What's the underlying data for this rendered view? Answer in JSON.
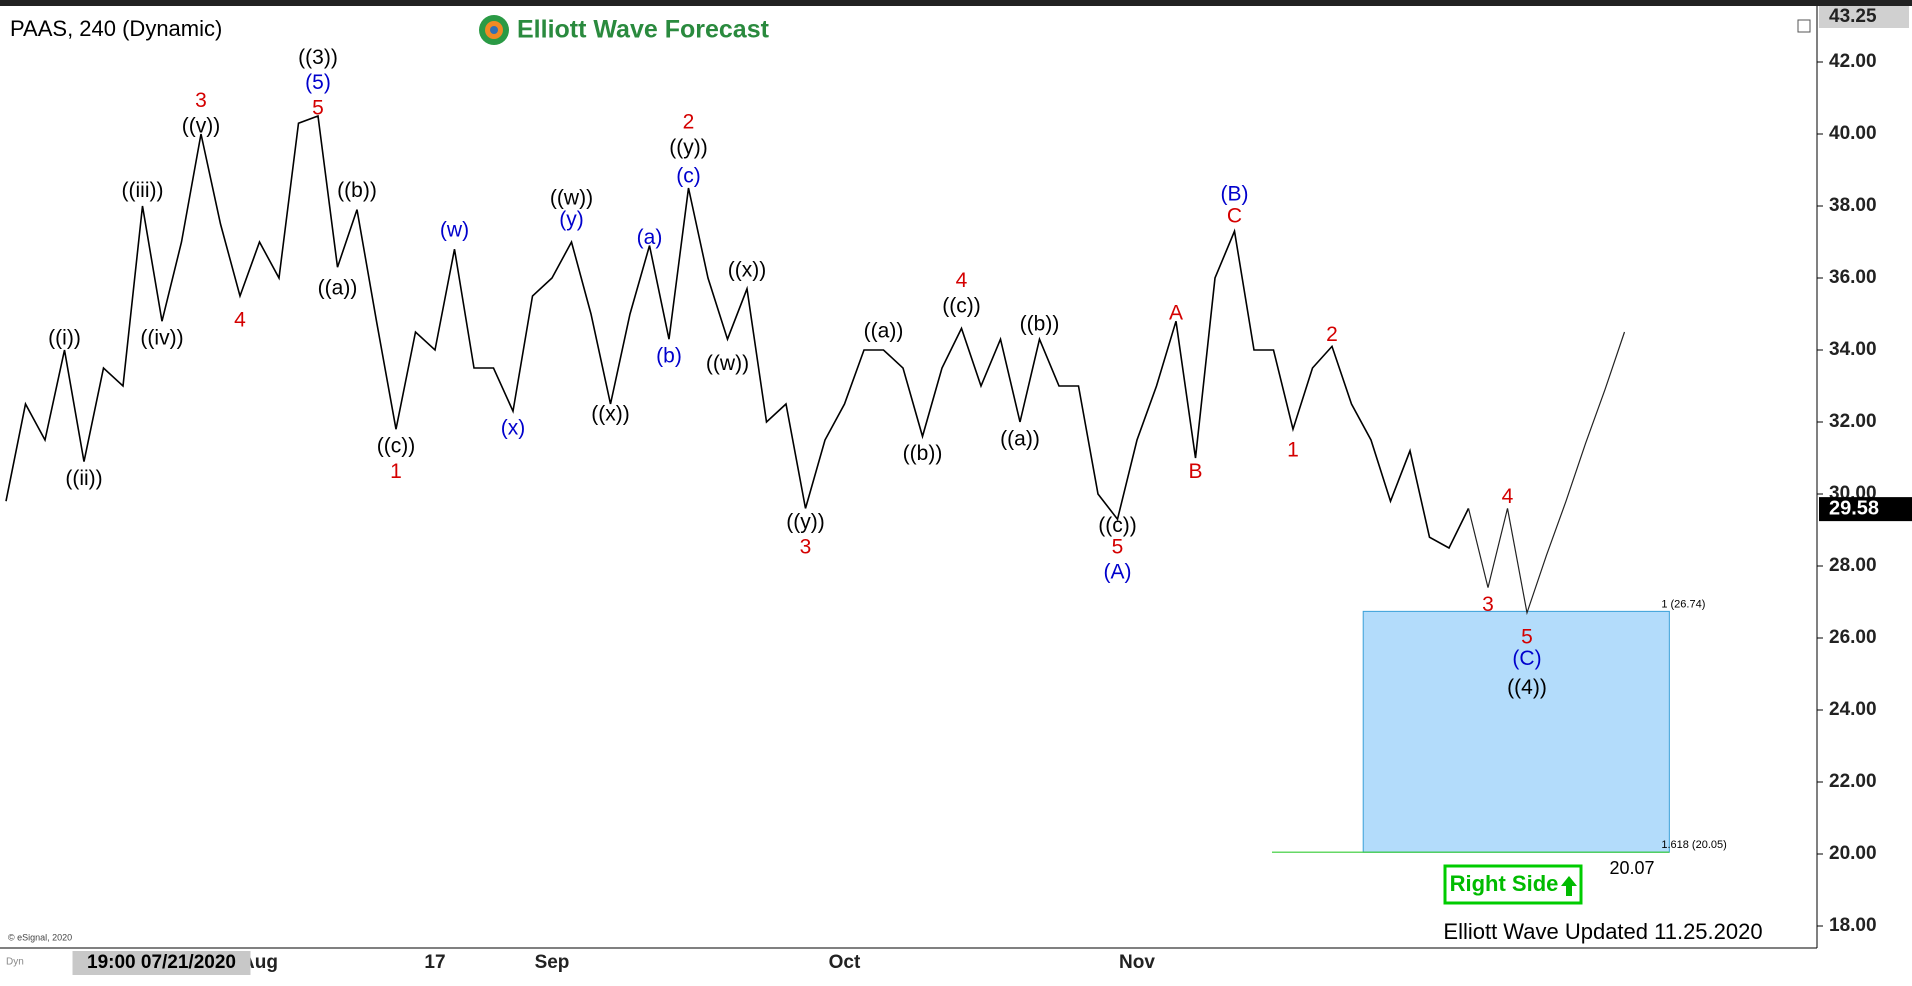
{
  "header": {
    "symbol": "PAAS, 240 (Dynamic)",
    "brand": "Elliott Wave Forecast"
  },
  "footer": {
    "updated": "Elliott Wave Updated 11.25.2020",
    "copyright": "© eSignal, 2020",
    "corner": "Dyn",
    "badge": "Right Side"
  },
  "chart_data": {
    "type": "line",
    "categories": [
      null,
      null,
      null,
      null,
      null,
      null,
      null,
      null,
      null,
      null,
      null,
      null,
      null,
      "Aug",
      null,
      null,
      null,
      null,
      null,
      null,
      null,
      null,
      "17",
      null,
      null,
      null,
      null,
      null,
      "Sep",
      null,
      null,
      null,
      null,
      null,
      null,
      null,
      null,
      null,
      null,
      null,
      null,
      null,
      null,
      "Oct",
      null,
      null,
      null,
      null,
      null,
      null,
      null,
      null,
      null,
      null,
      null,
      null,
      null,
      null,
      "Nov",
      null,
      null,
      null,
      null,
      null,
      null,
      null,
      null,
      null,
      null,
      null,
      null,
      null,
      null,
      null,
      null,
      null,
      null,
      null,
      null,
      null,
      null,
      null,
      null,
      null
    ],
    "crosshair": {
      "label": "19:00 07/21/2020",
      "at": 7
    },
    "series": [
      {
        "color": "#000000",
        "values": [
          29.8,
          32.5,
          31.5,
          34.0,
          30.9,
          33.5,
          33.0,
          38.0,
          34.8,
          37.0,
          40.0,
          37.5,
          35.5,
          37.0,
          36.0,
          40.3,
          40.5,
          36.3,
          37.9,
          34.8,
          31.8,
          34.5,
          34.0,
          36.8,
          33.5,
          33.5,
          32.3,
          35.5,
          36.0,
          37.0,
          35.0,
          32.5,
          35.0,
          36.9,
          34.3,
          38.5,
          36.0,
          34.3,
          35.7,
          32.0,
          32.5,
          29.6,
          31.5,
          32.5,
          34.0,
          34.0,
          33.5,
          31.6,
          33.5,
          34.6,
          33.0,
          34.3,
          32.0,
          34.3,
          33.0,
          33.0,
          30.0,
          29.3,
          31.5,
          33.0,
          34.8,
          31.0,
          36.0,
          37.3,
          34.0,
          34.0,
          31.8,
          33.5,
          34.1,
          32.5,
          31.5,
          29.8,
          31.2,
          28.8,
          28.5,
          29.6,
          null,
          null,
          null,
          null,
          null,
          null,
          null,
          null
        ]
      },
      {
        "color": "#222222",
        "values": [
          null,
          null,
          null,
          null,
          null,
          null,
          null,
          null,
          null,
          null,
          null,
          null,
          null,
          null,
          null,
          null,
          null,
          null,
          null,
          null,
          null,
          null,
          null,
          null,
          null,
          null,
          null,
          null,
          null,
          null,
          null,
          null,
          null,
          null,
          null,
          null,
          null,
          null,
          null,
          null,
          null,
          null,
          null,
          null,
          null,
          null,
          null,
          null,
          null,
          null,
          null,
          null,
          null,
          null,
          null,
          null,
          null,
          null,
          null,
          null,
          null,
          null,
          null,
          null,
          null,
          null,
          null,
          null,
          null,
          null,
          null,
          null,
          null,
          null,
          null,
          29.6,
          27.4,
          29.6,
          26.7,
          28.3,
          29.8,
          31.4,
          32.9,
          34.5
        ]
      }
    ],
    "ylim": [
      17.4,
      43.4
    ],
    "yticks": [
      {
        "value": 18,
        "label": "18.00"
      },
      {
        "value": 20,
        "label": "20.00"
      },
      {
        "value": 22,
        "label": "22.00"
      },
      {
        "value": 24,
        "label": "24.00"
      },
      {
        "value": 26,
        "label": "26.00"
      },
      {
        "value": 28,
        "label": "28.00"
      },
      {
        "value": 30,
        "label": "30.00"
      },
      {
        "value": 32,
        "label": "32.00"
      },
      {
        "value": 34,
        "label": "34.00"
      },
      {
        "value": 36,
        "label": "36.00"
      },
      {
        "value": 38,
        "label": "38.00"
      },
      {
        "value": 40,
        "label": "40.00"
      },
      {
        "value": 42,
        "label": "42.00"
      }
    ],
    "grid": false,
    "last_price": 29.58,
    "high_price": 43.25,
    "target_price": 20.07,
    "fib_zone": {
      "top": 26.74,
      "bottom": 20.05,
      "top_label": "1 (26.74)",
      "bottom_label": "1.618 (20.05)",
      "color": "#b3dcfb",
      "border": "#3aa0d8"
    },
    "annotations": [
      {
        "text": "((i))",
        "color": "#000000",
        "at": 3,
        "y": 34.3
      },
      {
        "text": "((ii))",
        "color": "#000000",
        "at": 4,
        "y": 30.4
      },
      {
        "text": "((iii))",
        "color": "#000000",
        "at": 7,
        "y": 38.4
      },
      {
        "text": "((iv))",
        "color": "#000000",
        "at": 8,
        "y": 34.3
      },
      {
        "text": "3",
        "color": "#d40000",
        "at": 10,
        "y": 40.9
      },
      {
        "text": "((v))",
        "color": "#000000",
        "at": 10,
        "y": 40.2
      },
      {
        "text": "4",
        "color": "#d40000",
        "at": 12,
        "y": 34.8
      },
      {
        "text": "((3))",
        "color": "#000000",
        "at": 16,
        "y": 42.1
      },
      {
        "text": "(5)",
        "color": "#0000cc",
        "at": 16,
        "y": 41.4
      },
      {
        "text": "5",
        "color": "#d40000",
        "at": 16,
        "y": 40.7
      },
      {
        "text": "((a))",
        "color": "#000000",
        "at": 17,
        "y": 35.7
      },
      {
        "text": "((b))",
        "color": "#000000",
        "at": 18,
        "y": 38.4
      },
      {
        "text": "((c))",
        "color": "#000000",
        "at": 20,
        "y": 31.3
      },
      {
        "text": "1",
        "color": "#d40000",
        "at": 20,
        "y": 30.6
      },
      {
        "text": "(w)",
        "color": "#0000cc",
        "at": 23,
        "y": 37.3
      },
      {
        "text": "(x)",
        "color": "#0000cc",
        "at": 26,
        "y": 31.8
      },
      {
        "text": "((w))",
        "color": "#000000",
        "at": 29,
        "y": 38.2
      },
      {
        "text": "(y)",
        "color": "#0000cc",
        "at": 29,
        "y": 37.6
      },
      {
        "text": "((x))",
        "color": "#000000",
        "at": 31,
        "y": 32.2
      },
      {
        "text": "(a)",
        "color": "#0000cc",
        "at": 33,
        "y": 37.1
      },
      {
        "text": "(b)",
        "color": "#0000cc",
        "at": 34,
        "y": 33.8
      },
      {
        "text": "2",
        "color": "#d40000",
        "at": 35,
        "y": 40.3
      },
      {
        "text": "((y))",
        "color": "#000000",
        "at": 35,
        "y": 39.6
      },
      {
        "text": "(c)",
        "color": "#0000cc",
        "at": 35,
        "y": 38.8
      },
      {
        "text": "((w))",
        "color": "#000000",
        "at": 37,
        "y": 33.6
      },
      {
        "text": "((x))",
        "color": "#000000",
        "at": 38,
        "y": 36.2
      },
      {
        "text": "((y))",
        "color": "#000000",
        "at": 41,
        "y": 29.2
      },
      {
        "text": "3",
        "color": "#d40000",
        "at": 41,
        "y": 28.5
      },
      {
        "text": "((a))",
        "color": "#000000",
        "at": 45,
        "y": 34.5
      },
      {
        "text": "((b))",
        "color": "#000000",
        "at": 47,
        "y": 31.1
      },
      {
        "text": "4",
        "color": "#d40000",
        "at": 49,
        "y": 35.9
      },
      {
        "text": "((c))",
        "color": "#000000",
        "at": 49,
        "y": 35.2
      },
      {
        "text": "((a))",
        "color": "#000000",
        "at": 52,
        "y": 31.5
      },
      {
        "text": "((b))",
        "color": "#000000",
        "at": 53,
        "y": 34.7
      },
      {
        "text": "((c))",
        "color": "#000000",
        "at": 57,
        "y": 29.1
      },
      {
        "text": "5",
        "color": "#d40000",
        "at": 57,
        "y": 28.5
      },
      {
        "text": "(A)",
        "color": "#0000cc",
        "at": 57,
        "y": 27.8
      },
      {
        "text": "A",
        "color": "#d40000",
        "at": 60,
        "y": 35.0
      },
      {
        "text": "B",
        "color": "#d40000",
        "at": 61,
        "y": 30.6
      },
      {
        "text": "(B)",
        "color": "#0000cc",
        "at": 63,
        "y": 38.3
      },
      {
        "text": "C",
        "color": "#d40000",
        "at": 63,
        "y": 37.7
      },
      {
        "text": "1",
        "color": "#d40000",
        "at": 66,
        "y": 31.2
      },
      {
        "text": "2",
        "color": "#d40000",
        "at": 68,
        "y": 34.4
      },
      {
        "text": "3",
        "color": "#d40000",
        "at": 76,
        "y": 26.9
      },
      {
        "text": "4",
        "color": "#d40000",
        "at": 77,
        "y": 29.9
      },
      {
        "text": "5",
        "color": "#d40000",
        "at": 78,
        "y": 26.0
      },
      {
        "text": "(C)",
        "color": "#0000cc",
        "at": 78,
        "y": 25.4
      },
      {
        "text": "((4))",
        "color": "#000000",
        "at": 78,
        "y": 24.6
      }
    ]
  }
}
